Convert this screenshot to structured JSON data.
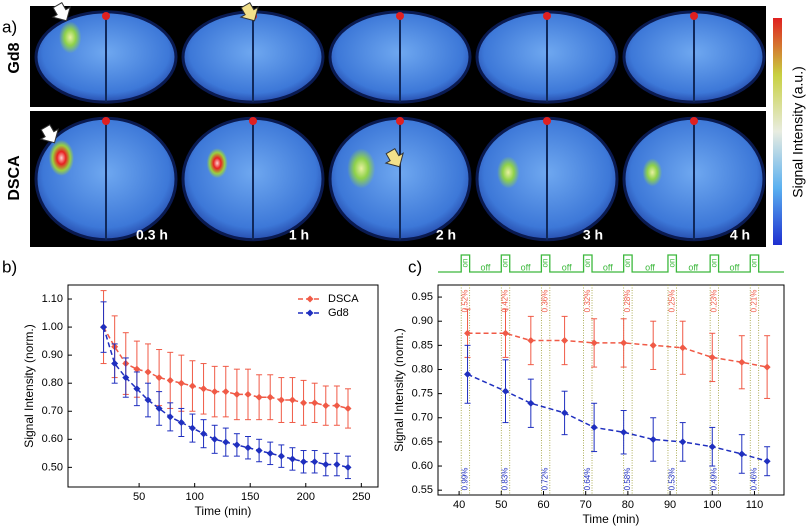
{
  "panel_a": {
    "panel_label": "a)",
    "row_labels": [
      "Gd8",
      "DSCA"
    ],
    "time_labels": [
      "0.3 h",
      "1 h",
      "2 h",
      "3 h",
      "4 h"
    ],
    "colorbar_label": "Signal Intensity (a.u.)"
  },
  "chart_data": [
    {
      "type": "line",
      "panel_label": "b)",
      "x_label": "Time (min)",
      "y_label": "Signal Intensity (norm.)",
      "xlim": [
        -14,
        265
      ],
      "xticks": [
        50,
        100,
        150,
        200,
        250
      ],
      "ylim": [
        0.43,
        1.15
      ],
      "yticks": [
        {
          "value": 0.5,
          "label": "0.50"
        },
        {
          "value": 0.6,
          "label": "0.60"
        },
        {
          "value": 0.7,
          "label": "0.70"
        },
        {
          "value": 0.8,
          "label": "0.80"
        },
        {
          "value": 0.9,
          "label": "0.90"
        },
        {
          "value": 1.0,
          "label": "1.00"
        },
        {
          "value": 1.1,
          "label": "1.10"
        }
      ],
      "legend": "top-right",
      "x": [
        18,
        28,
        38,
        48,
        58,
        68,
        78,
        88,
        98,
        108,
        118,
        128,
        138,
        148,
        158,
        168,
        178,
        188,
        198,
        208,
        218,
        228,
        238
      ],
      "series": [
        {
          "name": "DSCA",
          "color": "#f05a46",
          "values": [
            1.0,
            0.93,
            0.87,
            0.85,
            0.84,
            0.82,
            0.81,
            0.8,
            0.79,
            0.78,
            0.77,
            0.77,
            0.76,
            0.76,
            0.75,
            0.75,
            0.74,
            0.74,
            0.73,
            0.73,
            0.72,
            0.72,
            0.71
          ],
          "errors": [
            0.13,
            0.11,
            0.11,
            0.1,
            0.1,
            0.1,
            0.1,
            0.1,
            0.09,
            0.09,
            0.09,
            0.09,
            0.09,
            0.09,
            0.08,
            0.08,
            0.08,
            0.08,
            0.08,
            0.07,
            0.07,
            0.07,
            0.07
          ]
        },
        {
          "name": "Gd8",
          "color": "#1f2fbf",
          "values": [
            1.0,
            0.87,
            0.82,
            0.78,
            0.74,
            0.71,
            0.68,
            0.66,
            0.64,
            0.62,
            0.6,
            0.59,
            0.58,
            0.57,
            0.56,
            0.55,
            0.54,
            0.53,
            0.52,
            0.52,
            0.51,
            0.51,
            0.5
          ],
          "errors": [
            0.09,
            0.07,
            0.07,
            0.06,
            0.06,
            0.06,
            0.05,
            0.05,
            0.05,
            0.05,
            0.05,
            0.05,
            0.04,
            0.04,
            0.04,
            0.04,
            0.04,
            0.04,
            0.04,
            0.04,
            0.04,
            0.04,
            0.04
          ]
        }
      ]
    },
    {
      "type": "line",
      "panel_label": "c)",
      "x_label": "Time (min)",
      "y_label": "Signal Intensity (norm.)",
      "xlim": [
        35,
        117
      ],
      "xticks": [
        40,
        50,
        60,
        70,
        80,
        90,
        100,
        110
      ],
      "ylim": [
        0.54,
        0.975
      ],
      "yticks": [
        0.55,
        0.6,
        0.65,
        0.7,
        0.75,
        0.8,
        0.85,
        0.9,
        0.95
      ],
      "x": [
        42,
        51,
        57,
        65,
        72,
        79,
        86,
        93,
        100,
        107,
        113
      ],
      "series": [
        {
          "name": "DSCA",
          "color": "#f05a46",
          "values": [
            0.875,
            0.875,
            0.86,
            0.86,
            0.855,
            0.855,
            0.85,
            0.845,
            0.825,
            0.815,
            0.805
          ],
          "errors": [
            0.05,
            0.05,
            0.05,
            0.05,
            0.05,
            0.05,
            0.05,
            0.055,
            0.05,
            0.055,
            0.065
          ],
          "annotations": [
            "0.52%",
            "0.42%",
            "0.36%",
            "0.32%",
            "0.28%",
            "0.25%",
            "0.23%",
            "0.21%"
          ]
        },
        {
          "name": "Gd8",
          "color": "#1f2fbf",
          "values": [
            0.79,
            0.755,
            0.73,
            0.71,
            0.68,
            0.67,
            0.655,
            0.65,
            0.64,
            0.625,
            0.61
          ],
          "errors": [
            0.06,
            0.065,
            0.05,
            0.045,
            0.05,
            0.045,
            0.045,
            0.04,
            0.04,
            0.04,
            0.03
          ],
          "annotations": [
            "0.99%",
            "0.83%",
            "0.72%",
            "0.64%",
            "0.58%",
            "0.53%",
            "0.49%",
            "0.46%"
          ]
        }
      ],
      "stimulus": {
        "on_label": "on",
        "off_label": "off",
        "on_intervals": [
          [
            40.5,
            42.5
          ],
          [
            50,
            52
          ],
          [
            59.5,
            61.5
          ],
          [
            69.5,
            71.5
          ],
          [
            79,
            81
          ],
          [
            89.5,
            91.5
          ],
          [
            99.5,
            101.5
          ],
          [
            109,
            111
          ]
        ]
      }
    }
  ]
}
